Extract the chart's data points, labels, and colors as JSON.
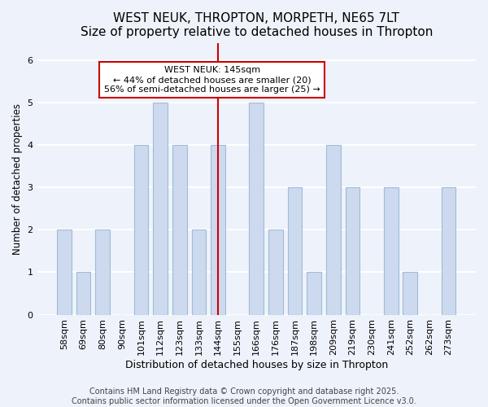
{
  "title": "WEST NEUK, THROPTON, MORPETH, NE65 7LT",
  "subtitle": "Size of property relative to detached houses in Thropton",
  "xlabel": "Distribution of detached houses by size in Thropton",
  "ylabel": "Number of detached properties",
  "categories": [
    "58sqm",
    "69sqm",
    "80sqm",
    "90sqm",
    "101sqm",
    "112sqm",
    "123sqm",
    "133sqm",
    "144sqm",
    "155sqm",
    "166sqm",
    "176sqm",
    "187sqm",
    "198sqm",
    "209sqm",
    "219sqm",
    "230sqm",
    "241sqm",
    "252sqm",
    "262sqm",
    "273sqm"
  ],
  "values": [
    2,
    1,
    2,
    0,
    4,
    5,
    4,
    2,
    4,
    0,
    5,
    2,
    3,
    1,
    4,
    3,
    0,
    3,
    1,
    0,
    3
  ],
  "bar_color": "#ccd9ee",
  "bar_edge_color": "#a0bcd8",
  "vline_index": 8,
  "vline_color": "#cc0000",
  "annotation_text": "WEST NEUK: 145sqm\n← 44% of detached houses are smaller (20)\n56% of semi-detached houses are larger (25) →",
  "annotation_box_facecolor": "#ffffff",
  "annotation_box_edgecolor": "#cc0000",
  "ylim": [
    0,
    6.4
  ],
  "yticks": [
    0,
    1,
    2,
    3,
    4,
    5,
    6
  ],
  "title_fontsize": 11,
  "subtitle_fontsize": 9.5,
  "xlabel_fontsize": 9,
  "ylabel_fontsize": 8.5,
  "tick_fontsize": 8,
  "annotation_fontsize": 8,
  "footer_text": "Contains HM Land Registry data © Crown copyright and database right 2025.\nContains public sector information licensed under the Open Government Licence v3.0.",
  "footer_fontsize": 7,
  "background_color": "#eef2fa",
  "grid_color": "#ffffff"
}
